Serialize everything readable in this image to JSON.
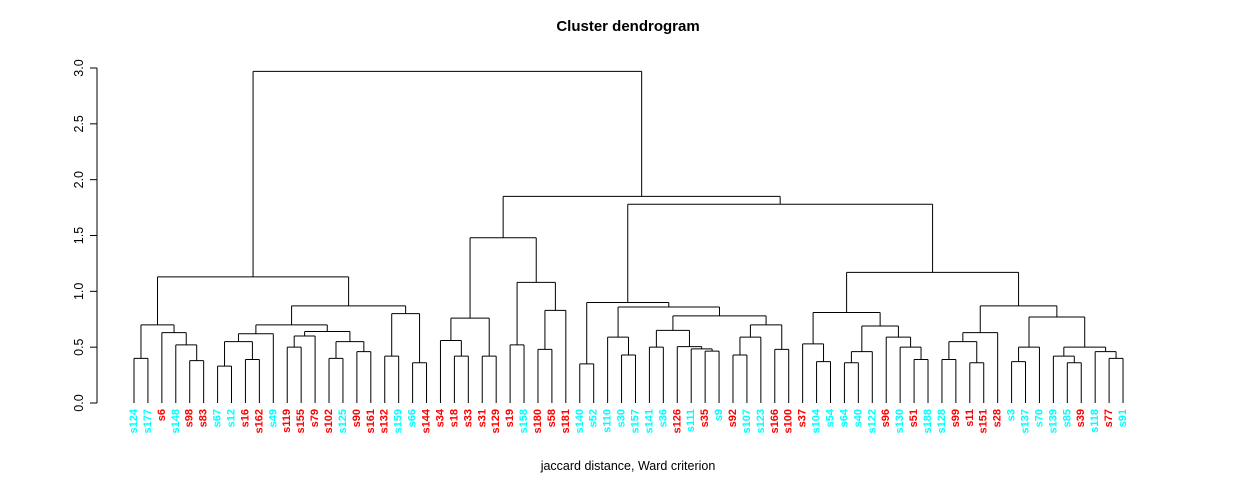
{
  "title": "Cluster dendrogram",
  "subtitle": "jaccard distance, Ward criterion",
  "colors": {
    "line": "#000000",
    "text": "#000000",
    "cluster_red": "#FF0000",
    "cluster_cyan": "#00FFFF"
  },
  "axis": {
    "tick_labels": [
      "0.0",
      "0.5",
      "1.0",
      "1.5",
      "2.0",
      "2.5",
      "3.0"
    ],
    "tick_values": [
      0.0,
      0.5,
      1.0,
      1.5,
      2.0,
      2.5,
      3.0
    ]
  },
  "chart_data": {
    "type": "dendrogram",
    "title": "Cluster dendrogram",
    "sub": "jaccard distance, Ward criterion",
    "ylim": [
      0,
      3
    ],
    "root_height": 2.97,
    "legend_position": "none",
    "grid": false,
    "leaves": [
      {
        "label": "s124",
        "color": "cyan"
      },
      {
        "label": "s177",
        "color": "cyan"
      },
      {
        "label": "s6",
        "color": "red"
      },
      {
        "label": "s148",
        "color": "cyan"
      },
      {
        "label": "s98",
        "color": "red"
      },
      {
        "label": "s83",
        "color": "red"
      },
      {
        "label": "s67",
        "color": "cyan"
      },
      {
        "label": "s12",
        "color": "cyan"
      },
      {
        "label": "s16",
        "color": "red"
      },
      {
        "label": "s162",
        "color": "red"
      },
      {
        "label": "s49",
        "color": "cyan"
      },
      {
        "label": "s119",
        "color": "red"
      },
      {
        "label": "s155",
        "color": "red"
      },
      {
        "label": "s79",
        "color": "red"
      },
      {
        "label": "s102",
        "color": "red"
      },
      {
        "label": "s125",
        "color": "cyan"
      },
      {
        "label": "s90",
        "color": "red"
      },
      {
        "label": "s161",
        "color": "red"
      },
      {
        "label": "s132",
        "color": "red"
      },
      {
        "label": "s159",
        "color": "cyan"
      },
      {
        "label": "s66",
        "color": "cyan"
      },
      {
        "label": "s144",
        "color": "red"
      },
      {
        "label": "s34",
        "color": "red"
      },
      {
        "label": "s18",
        "color": "red"
      },
      {
        "label": "s33",
        "color": "red"
      },
      {
        "label": "s31",
        "color": "red"
      },
      {
        "label": "s129",
        "color": "red"
      },
      {
        "label": "s19",
        "color": "red"
      },
      {
        "label": "s158",
        "color": "cyan"
      },
      {
        "label": "s180",
        "color": "red"
      },
      {
        "label": "s58",
        "color": "red"
      },
      {
        "label": "s181",
        "color": "red"
      },
      {
        "label": "s140",
        "color": "cyan"
      },
      {
        "label": "s52",
        "color": "cyan"
      },
      {
        "label": "s110",
        "color": "cyan"
      },
      {
        "label": "s30",
        "color": "cyan"
      },
      {
        "label": "s157",
        "color": "cyan"
      },
      {
        "label": "s141",
        "color": "cyan"
      },
      {
        "label": "s36",
        "color": "cyan"
      },
      {
        "label": "s126",
        "color": "red"
      },
      {
        "label": "s111",
        "color": "cyan"
      },
      {
        "label": "s35",
        "color": "red"
      },
      {
        "label": "s9",
        "color": "cyan"
      },
      {
        "label": "s92",
        "color": "red"
      },
      {
        "label": "s107",
        "color": "cyan"
      },
      {
        "label": "s123",
        "color": "cyan"
      },
      {
        "label": "s166",
        "color": "red"
      },
      {
        "label": "s100",
        "color": "red"
      },
      {
        "label": "s37",
        "color": "red"
      },
      {
        "label": "s104",
        "color": "cyan"
      },
      {
        "label": "s54",
        "color": "cyan"
      },
      {
        "label": "s64",
        "color": "cyan"
      },
      {
        "label": "s40",
        "color": "cyan"
      },
      {
        "label": "s122",
        "color": "cyan"
      },
      {
        "label": "s96",
        "color": "red"
      },
      {
        "label": "s130",
        "color": "cyan"
      },
      {
        "label": "s51",
        "color": "red"
      },
      {
        "label": "s188",
        "color": "cyan"
      },
      {
        "label": "s128",
        "color": "cyan"
      },
      {
        "label": "s99",
        "color": "red"
      },
      {
        "label": "s11",
        "color": "red"
      },
      {
        "label": "s151",
        "color": "red"
      },
      {
        "label": "s28",
        "color": "red"
      },
      {
        "label": "s3",
        "color": "cyan"
      },
      {
        "label": "s137",
        "color": "cyan"
      },
      {
        "label": "s70",
        "color": "cyan"
      },
      {
        "label": "s139",
        "color": "cyan"
      },
      {
        "label": "s85",
        "color": "cyan"
      },
      {
        "label": "s39",
        "color": "red"
      },
      {
        "label": "s118",
        "color": "cyan"
      },
      {
        "label": "s77",
        "color": "red"
      },
      {
        "label": "s91",
        "color": "cyan"
      }
    ],
    "tree": {
      "h": 2.97,
      "c": [
        {
          "h": 1.13,
          "c": [
            {
              "h": 0.7,
              "c": [
                {
                  "h": 0.4,
                  "c": [
                    "s124",
                    "s177"
                  ]
                },
                {
                  "h": 0.63,
                  "c": [
                    "s6",
                    {
                      "h": 0.52,
                      "c": [
                        "s148",
                        {
                          "h": 0.38,
                          "c": [
                            "s98",
                            "s83"
                          ]
                        }
                      ]
                    }
                  ]
                }
              ]
            },
            {
              "h": 0.87,
              "c": [
                {
                  "h": 0.7,
                  "c": [
                    {
                      "h": 0.62,
                      "c": [
                        {
                          "h": 0.55,
                          "c": [
                            {
                              "h": 0.33,
                              "c": [
                                "s67",
                                "s12"
                              ]
                            },
                            {
                              "h": 0.39,
                              "c": [
                                "s16",
                                "s162"
                              ]
                            }
                          ]
                        },
                        "s49"
                      ]
                    },
                    {
                      "h": 0.64,
                      "c": [
                        {
                          "h": 0.6,
                          "c": [
                            {
                              "h": 0.5,
                              "c": [
                                "s119",
                                "s155"
                              ]
                            },
                            "s79"
                          ]
                        },
                        {
                          "h": 0.55,
                          "c": [
                            {
                              "h": 0.4,
                              "c": [
                                "s102",
                                "s125"
                              ]
                            },
                            {
                              "h": 0.46,
                              "c": [
                                "s90",
                                "s161"
                              ]
                            }
                          ]
                        }
                      ]
                    }
                  ]
                },
                {
                  "h": 0.8,
                  "c": [
                    {
                      "h": 0.42,
                      "c": [
                        "s132",
                        "s159"
                      ]
                    },
                    {
                      "h": 0.36,
                      "c": [
                        "s66",
                        "s144"
                      ]
                    }
                  ]
                }
              ]
            }
          ]
        },
        {
          "h": 1.85,
          "c": [
            {
              "h": 1.48,
              "c": [
                {
                  "h": 0.76,
                  "c": [
                    {
                      "h": 0.56,
                      "c": [
                        "s34",
                        {
                          "h": 0.42,
                          "c": [
                            "s18",
                            "s33"
                          ]
                        }
                      ]
                    },
                    {
                      "h": 0.42,
                      "c": [
                        "s31",
                        "s129"
                      ]
                    }
                  ]
                },
                {
                  "h": 1.08,
                  "c": [
                    {
                      "h": 0.52,
                      "c": [
                        "s19",
                        "s158"
                      ]
                    },
                    {
                      "h": 0.83,
                      "c": [
                        {
                          "h": 0.48,
                          "c": [
                            "s180",
                            "s58"
                          ]
                        },
                        "s181"
                      ]
                    }
                  ]
                }
              ]
            },
            {
              "h": 1.78,
              "c": [
                {
                  "h": 0.9,
                  "c": [
                    {
                      "h": 0.35,
                      "c": [
                        "s140",
                        "s52"
                      ]
                    },
                    {
                      "h": 0.86,
                      "c": [
                        {
                          "h": 0.59,
                          "c": [
                            "s110",
                            {
                              "h": 0.43,
                              "c": [
                                "s30",
                                "s157"
                              ]
                            }
                          ]
                        },
                        {
                          "h": 0.78,
                          "c": [
                            {
                              "h": 0.65,
                              "c": [
                                {
                                  "h": 0.5,
                                  "c": [
                                    "s141",
                                    "s36"
                                  ]
                                },
                                {
                                  "h": 0.505,
                                  "c": [
                                    "s126",
                                    {
                                      "h": 0.485,
                                      "c": [
                                        "s111",
                                        {
                                          "h": 0.465,
                                          "c": [
                                            "s35",
                                            "s9"
                                          ]
                                        }
                                      ]
                                    }
                                  ]
                                }
                              ]
                            },
                            {
                              "h": 0.7,
                              "c": [
                                {
                                  "h": 0.59,
                                  "c": [
                                    {
                                      "h": 0.43,
                                      "c": [
                                        "s92",
                                        "s107"
                                      ]
                                    },
                                    "s123"
                                  ]
                                },
                                {
                                  "h": 0.48,
                                  "c": [
                                    "s166",
                                    "s100"
                                  ]
                                }
                              ]
                            }
                          ]
                        }
                      ]
                    }
                  ]
                },
                {
                  "h": 1.17,
                  "c": [
                    {
                      "h": 0.81,
                      "c": [
                        {
                          "h": 0.53,
                          "c": [
                            "s37",
                            {
                              "h": 0.37,
                              "c": [
                                "s104",
                                "s54"
                              ]
                            }
                          ]
                        },
                        {
                          "h": 0.69,
                          "c": [
                            {
                              "h": 0.46,
                              "c": [
                                {
                                  "h": 0.36,
                                  "c": [
                                    "s64",
                                    "s40"
                                  ]
                                },
                                "s122"
                              ]
                            },
                            {
                              "h": 0.59,
                              "c": [
                                "s96",
                                {
                                  "h": 0.5,
                                  "c": [
                                    "s130",
                                    {
                                      "h": 0.39,
                                      "c": [
                                        "s51",
                                        "s188"
                                      ]
                                    }
                                  ]
                                }
                              ]
                            }
                          ]
                        }
                      ]
                    },
                    {
                      "h": 0.87,
                      "c": [
                        {
                          "h": 0.63,
                          "c": [
                            {
                              "h": 0.55,
                              "c": [
                                {
                                  "h": 0.39,
                                  "c": [
                                    "s128",
                                    "s99"
                                  ]
                                },
                                {
                                  "h": 0.36,
                                  "c": [
                                    "s11",
                                    "s151"
                                  ]
                                }
                              ]
                            },
                            "s28"
                          ]
                        },
                        {
                          "h": 0.77,
                          "c": [
                            {
                              "h": 0.5,
                              "c": [
                                {
                                  "h": 0.37,
                                  "c": [
                                    "s3",
                                    "s137"
                                  ]
                                },
                                "s70"
                              ]
                            },
                            {
                              "h": 0.5,
                              "c": [
                                {
                                  "h": 0.42,
                                  "c": [
                                    "s139",
                                    {
                                      "h": 0.36,
                                      "c": [
                                        "s85",
                                        "s39"
                                      ]
                                    }
                                  ]
                                },
                                {
                                  "h": 0.46,
                                  "c": [
                                    "s118",
                                    {
                                      "h": 0.4,
                                      "c": [
                                        "s77",
                                        "s91"
                                      ]
                                    }
                                  ]
                                }
                              ]
                            }
                          ]
                        }
                      ]
                    }
                  ]
                }
              ]
            }
          ]
        }
      ]
    }
  }
}
